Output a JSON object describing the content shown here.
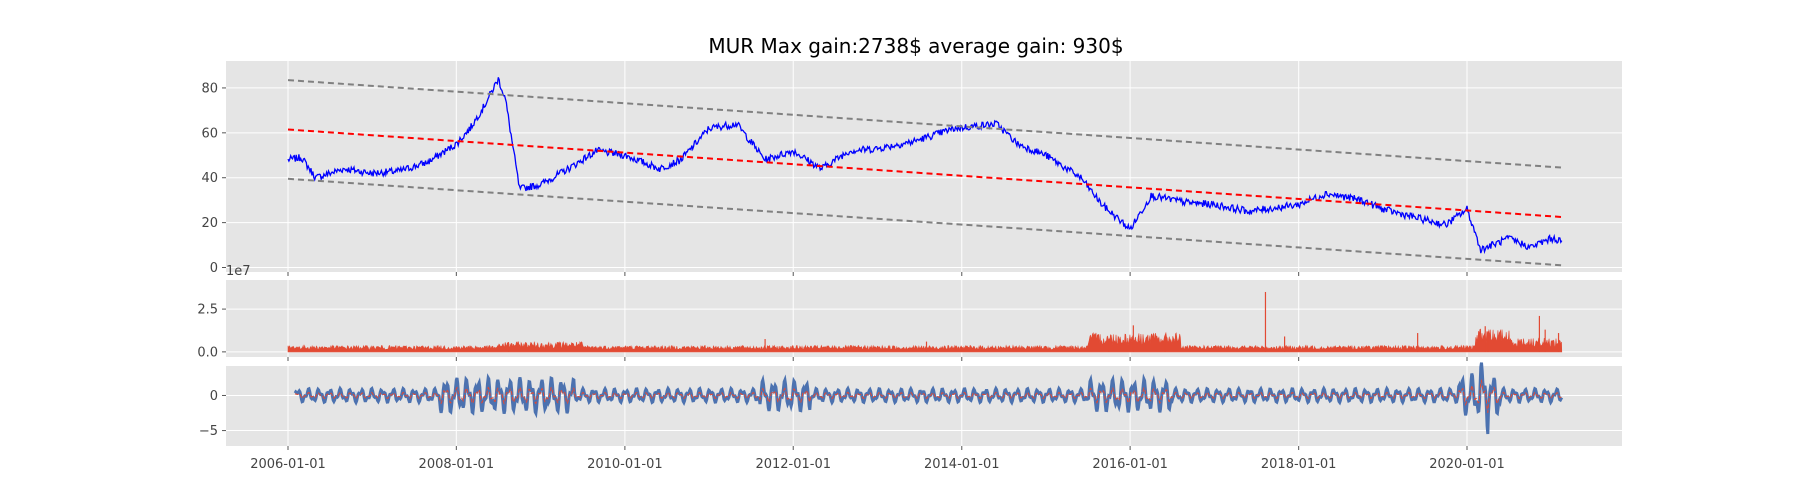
{
  "chart_data": {
    "title": "MUR Max gain:2738$  average gain: 930$",
    "x_ticks": [
      "2006-01-01",
      "2008-01-01",
      "2010-01-01",
      "2012-01-01",
      "2014-01-01",
      "2016-01-01",
      "2018-01-01",
      "2020-01-01"
    ],
    "x_range": [
      "2006-01-01",
      "2021-02-15"
    ],
    "panels": [
      {
        "type": "line",
        "ylim": [
          -2,
          92
        ],
        "y_ticks": [
          0,
          20,
          40,
          60,
          80
        ],
        "grid": true,
        "series": [
          {
            "role": "price",
            "color": "#0000ff",
            "style": "solid",
            "points": [
              [
                "2006-01-01",
                48
              ],
              [
                "2006-03-01",
                49
              ],
              [
                "2006-05-01",
                40
              ],
              [
                "2006-09-01",
                44
              ],
              [
                "2007-01-01",
                42
              ],
              [
                "2007-05-01",
                43
              ],
              [
                "2007-09-01",
                47
              ],
              [
                "2008-01-01",
                55
              ],
              [
                "2008-03-01",
                62
              ],
              [
                "2008-05-01",
                72
              ],
              [
                "2008-07-01",
                84
              ],
              [
                "2008-08-01",
                75
              ],
              [
                "2008-10-01",
                35
              ],
              [
                "2009-01-01",
                37
              ],
              [
                "2009-05-01",
                44
              ],
              [
                "2009-09-01",
                52
              ],
              [
                "2010-01-01",
                50
              ],
              [
                "2010-06-01",
                44
              ],
              [
                "2010-09-01",
                48
              ],
              [
                "2011-01-01",
                62
              ],
              [
                "2011-05-01",
                64
              ],
              [
                "2011-09-01",
                48
              ],
              [
                "2012-01-01",
                52
              ],
              [
                "2012-05-01",
                44
              ],
              [
                "2012-09-01",
                52
              ],
              [
                "2013-01-01",
                53
              ],
              [
                "2013-06-01",
                56
              ],
              [
                "2013-12-01",
                62
              ],
              [
                "2014-06-01",
                64
              ],
              [
                "2014-09-01",
                55
              ],
              [
                "2015-01-01",
                50
              ],
              [
                "2015-06-01",
                40
              ],
              [
                "2015-09-01",
                28
              ],
              [
                "2016-01-01",
                17
              ],
              [
                "2016-04-01",
                32
              ],
              [
                "2016-09-01",
                29
              ],
              [
                "2017-01-01",
                28
              ],
              [
                "2017-06-01",
                25
              ],
              [
                "2018-01-01",
                28
              ],
              [
                "2018-05-01",
                33
              ],
              [
                "2018-10-01",
                30
              ],
              [
                "2019-01-01",
                26
              ],
              [
                "2019-06-01",
                22
              ],
              [
                "2019-10-01",
                19
              ],
              [
                "2020-01-01",
                26
              ],
              [
                "2020-03-01",
                8
              ],
              [
                "2020-07-01",
                13
              ],
              [
                "2020-10-01",
                9
              ],
              [
                "2021-01-01",
                13
              ],
              [
                "2021-02-15",
                12
              ]
            ]
          },
          {
            "role": "trend",
            "color": "#ff0000",
            "style": "dashed",
            "points": [
              [
                "2006-01-01",
                61.5
              ],
              [
                "2021-02-15",
                22.5
              ]
            ]
          },
          {
            "role": "upper-band",
            "color": "#808080",
            "style": "dashed",
            "points": [
              [
                "2006-01-01",
                83.5
              ],
              [
                "2021-02-15",
                44.5
              ]
            ]
          },
          {
            "role": "lower-band",
            "color": "#808080",
            "style": "dashed",
            "points": [
              [
                "2006-01-01",
                39.5
              ],
              [
                "2021-02-15",
                1
              ]
            ]
          }
        ]
      },
      {
        "type": "bar",
        "ylim": [
          -0.3,
          4.2
        ],
        "y_ticks": [
          "0.0",
          "2.5"
        ],
        "y_tick_values": [
          0,
          2.5
        ],
        "offset_label": "1e7",
        "color": "#e24a33",
        "spikes": [
          [
            "2008-08-15",
            0.45
          ],
          [
            "2011-09-01",
            0.75
          ],
          [
            "2013-08-01",
            0.6
          ],
          [
            "2015-10-01",
            0.6
          ],
          [
            "2016-01-15",
            1.55
          ],
          [
            "2016-06-01",
            0.8
          ],
          [
            "2017-08-10",
            3.5
          ],
          [
            "2017-11-01",
            0.9
          ],
          [
            "2019-06-01",
            1.1
          ],
          [
            "2020-03-20",
            1.5
          ],
          [
            "2020-04-01",
            1.2
          ],
          [
            "2020-11-10",
            2.1
          ],
          [
            "2020-12-05",
            1.3
          ],
          [
            "2021-02-01",
            1.1
          ]
        ]
      },
      {
        "type": "line",
        "ylim": [
          -7.2,
          4.2
        ],
        "y_ticks": [
          "0",
          "−5"
        ],
        "y_tick_values": [
          0,
          -5
        ],
        "series": [
          {
            "role": "oscillator",
            "color": "#4c72b0",
            "width": 3
          },
          {
            "role": "oscillator-overlay",
            "color": "#e24a33",
            "style": "dashed",
            "width": 1
          }
        ]
      }
    ]
  }
}
